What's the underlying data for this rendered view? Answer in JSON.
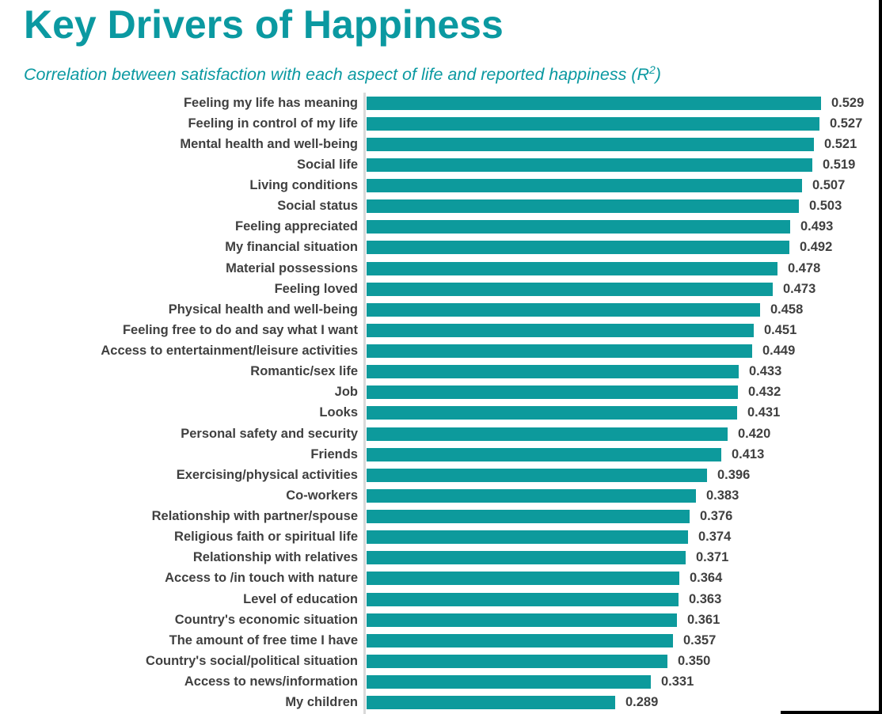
{
  "colors": {
    "title": "#0b99a1",
    "subtitle": "#0b99a1",
    "bar": "#0d9a9c",
    "label_text": "#404040",
    "axis_line": "#d9d9d9",
    "frame_border": "#000000"
  },
  "header": {
    "title": "Key Drivers of Happiness",
    "subtitle_prefix": "Correlation between satisfaction with each aspect of life and reported happiness (R",
    "subtitle_sup": "2",
    "subtitle_suffix": ")"
  },
  "chart_data": {
    "type": "bar",
    "orientation": "horizontal",
    "title": "Key Drivers of Happiness",
    "subtitle": "Correlation between satisfaction with each aspect of life and reported happiness (R²)",
    "xlabel": "",
    "ylabel": "",
    "xlim": [
      0,
      0.58
    ],
    "grid": false,
    "legend": "none",
    "value_format": "3-decimals",
    "categories": [
      "Feeling my life has meaning",
      "Feeling in control of my life",
      "Mental health and well-being",
      "Social life",
      "Living conditions",
      "Social status",
      "Feeling appreciated",
      "My financial situation",
      "Material possessions",
      "Feeling loved",
      "Physical health and well-being",
      "Feeling free to do and say what I want",
      "Access to entertainment/leisure activities",
      "Romantic/sex life",
      "Job",
      "Looks",
      "Personal safety and security",
      "Friends",
      "Exercising/physical activities",
      "Co-workers",
      "Relationship with partner/spouse",
      "Religious faith or spiritual life",
      "Relationship with relatives",
      "Access to /in touch with nature",
      "Level of education",
      "Country's economic situation",
      "The amount of free time I have",
      "Country's social/political situation",
      "Access to news/information",
      "My children"
    ],
    "values": [
      0.529,
      0.527,
      0.521,
      0.519,
      0.507,
      0.503,
      0.493,
      0.492,
      0.478,
      0.473,
      0.458,
      0.451,
      0.449,
      0.433,
      0.432,
      0.431,
      0.42,
      0.413,
      0.396,
      0.383,
      0.376,
      0.374,
      0.371,
      0.364,
      0.363,
      0.361,
      0.357,
      0.35,
      0.331,
      0.289
    ]
  }
}
